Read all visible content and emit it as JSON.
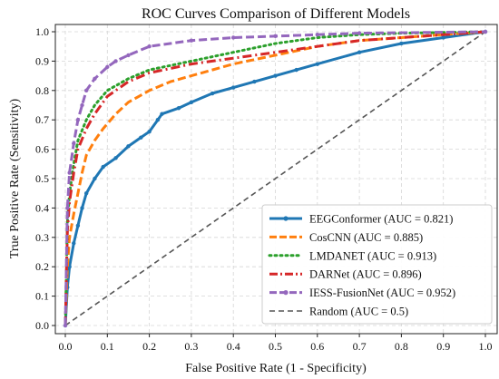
{
  "chart_data": {
    "type": "line",
    "title": "ROC Curves Comparison of Different Models",
    "xlabel": "False Positive Rate (1 - Specificity)",
    "ylabel": "True Positive Rate (Sensitivity)",
    "xlim": [
      0,
      1
    ],
    "ylim": [
      0,
      1
    ],
    "xticks": [
      "0.0",
      "0.1",
      "0.2",
      "0.3",
      "0.4",
      "0.5",
      "0.6",
      "0.7",
      "0.8",
      "0.9",
      "1.0"
    ],
    "yticks": [
      "0.0",
      "0.1",
      "0.2",
      "0.3",
      "0.4",
      "0.5",
      "0.6",
      "0.7",
      "0.8",
      "0.9",
      "1.0"
    ],
    "grid": true,
    "legend_position": "lower-right",
    "series": [
      {
        "name": "EEGConformer (AUC = 0.821)",
        "color": "#1f77b4",
        "style": "solid-marker",
        "points": [
          [
            0,
            0
          ],
          [
            0.005,
            0.13
          ],
          [
            0.01,
            0.2
          ],
          [
            0.02,
            0.28
          ],
          [
            0.03,
            0.34
          ],
          [
            0.04,
            0.4
          ],
          [
            0.05,
            0.45
          ],
          [
            0.07,
            0.5
          ],
          [
            0.09,
            0.54
          ],
          [
            0.12,
            0.57
          ],
          [
            0.15,
            0.61
          ],
          [
            0.18,
            0.64
          ],
          [
            0.2,
            0.66
          ],
          [
            0.22,
            0.7
          ],
          [
            0.23,
            0.72
          ],
          [
            0.27,
            0.74
          ],
          [
            0.3,
            0.76
          ],
          [
            0.35,
            0.79
          ],
          [
            0.4,
            0.81
          ],
          [
            0.45,
            0.83
          ],
          [
            0.5,
            0.85
          ],
          [
            0.55,
            0.87
          ],
          [
            0.6,
            0.89
          ],
          [
            0.7,
            0.93
          ],
          [
            0.8,
            0.96
          ],
          [
            0.9,
            0.98
          ],
          [
            1,
            1
          ]
        ]
      },
      {
        "name": "CosCNN (AUC = 0.885)",
        "color": "#ff7f0e",
        "style": "dashed",
        "points": [
          [
            0,
            0
          ],
          [
            0.005,
            0.2
          ],
          [
            0.01,
            0.3
          ],
          [
            0.02,
            0.38
          ],
          [
            0.03,
            0.45
          ],
          [
            0.04,
            0.52
          ],
          [
            0.05,
            0.58
          ],
          [
            0.07,
            0.63
          ],
          [
            0.09,
            0.67
          ],
          [
            0.12,
            0.72
          ],
          [
            0.15,
            0.76
          ],
          [
            0.2,
            0.8
          ],
          [
            0.25,
            0.83
          ],
          [
            0.3,
            0.85
          ],
          [
            0.4,
            0.89
          ],
          [
            0.5,
            0.92
          ],
          [
            0.6,
            0.95
          ],
          [
            0.7,
            0.97
          ],
          [
            0.8,
            0.98
          ],
          [
            0.9,
            0.99
          ],
          [
            1,
            1
          ]
        ]
      },
      {
        "name": "LMDANET (AUC = 0.913)",
        "color": "#2ca02c",
        "style": "dotted",
        "points": [
          [
            0,
            0
          ],
          [
            0.005,
            0.35
          ],
          [
            0.01,
            0.45
          ],
          [
            0.02,
            0.55
          ],
          [
            0.03,
            0.63
          ],
          [
            0.05,
            0.7
          ],
          [
            0.07,
            0.75
          ],
          [
            0.1,
            0.8
          ],
          [
            0.15,
            0.84
          ],
          [
            0.2,
            0.87
          ],
          [
            0.3,
            0.9
          ],
          [
            0.4,
            0.93
          ],
          [
            0.5,
            0.96
          ],
          [
            0.6,
            0.98
          ],
          [
            0.7,
            0.99
          ],
          [
            0.8,
            0.995
          ],
          [
            1,
            1
          ]
        ]
      },
      {
        "name": "DARNet (AUC = 0.896)",
        "color": "#d62728",
        "style": "dashdot",
        "points": [
          [
            0,
            0
          ],
          [
            0.005,
            0.32
          ],
          [
            0.01,
            0.42
          ],
          [
            0.02,
            0.52
          ],
          [
            0.03,
            0.6
          ],
          [
            0.05,
            0.67
          ],
          [
            0.07,
            0.72
          ],
          [
            0.1,
            0.78
          ],
          [
            0.15,
            0.83
          ],
          [
            0.2,
            0.86
          ],
          [
            0.3,
            0.89
          ],
          [
            0.4,
            0.91
          ],
          [
            0.5,
            0.93
          ],
          [
            0.6,
            0.95
          ],
          [
            0.7,
            0.97
          ],
          [
            0.8,
            0.98
          ],
          [
            0.9,
            0.99
          ],
          [
            1,
            1
          ]
        ]
      },
      {
        "name": "IESS-FusionNet (AUC = 0.952)",
        "color": "#9467bd",
        "style": "dashed-marker",
        "points": [
          [
            0,
            0
          ],
          [
            0.005,
            0.4
          ],
          [
            0.01,
            0.52
          ],
          [
            0.02,
            0.62
          ],
          [
            0.03,
            0.7
          ],
          [
            0.04,
            0.75
          ],
          [
            0.05,
            0.8
          ],
          [
            0.07,
            0.84
          ],
          [
            0.1,
            0.88
          ],
          [
            0.12,
            0.9
          ],
          [
            0.15,
            0.92
          ],
          [
            0.2,
            0.95
          ],
          [
            0.3,
            0.97
          ],
          [
            0.4,
            0.98
          ],
          [
            0.5,
            0.985
          ],
          [
            0.6,
            0.99
          ],
          [
            0.7,
            0.995
          ],
          [
            1,
            1
          ]
        ]
      },
      {
        "name": "Random (AUC = 0.5)",
        "color": "#555555",
        "style": "dashed",
        "points": [
          [
            0,
            0
          ],
          [
            1,
            1
          ]
        ]
      }
    ]
  }
}
